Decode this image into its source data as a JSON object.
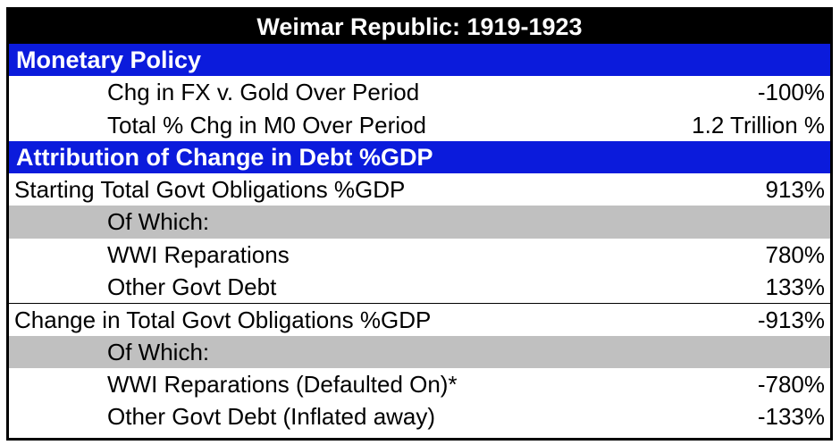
{
  "title": "Weimar Republic: 1919-1923",
  "sections": {
    "monetary_policy": "Monetary Policy",
    "attribution": "Attribution of Change in Debt %GDP"
  },
  "rows": [
    {
      "label": "Chg in FX v. Gold Over Period",
      "value": "-100%"
    },
    {
      "label": "Total % Chg in M0 Over Period",
      "value": "1.2 Trillion %"
    },
    {
      "label": "Starting Total Govt Obligations %GDP",
      "value": "913%"
    },
    {
      "label": "Of Which:",
      "value": ""
    },
    {
      "label": "WWI Reparations",
      "value": "780%"
    },
    {
      "label": "Other Govt Debt",
      "value": "133%"
    },
    {
      "label": "Change in Total Govt Obligations %GDP",
      "value": "-913%"
    },
    {
      "label": "Of Which:",
      "value": ""
    },
    {
      "label": "WWI Reparations (Defaulted On)*",
      "value": "-780%"
    },
    {
      "label": "Other Govt Debt (Inflated away)",
      "value": "-133%"
    }
  ]
}
